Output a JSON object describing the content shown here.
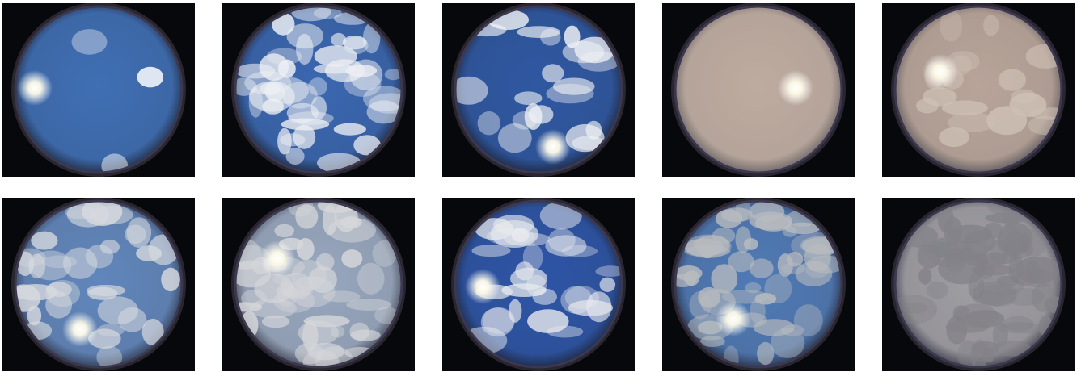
{
  "gallery": {
    "rows": 2,
    "columns": 5,
    "images": [
      {
        "icon": "fisheye-sky-clear-blue-icon",
        "sky": "#3f6fb4",
        "cloud": "#ffffff",
        "cloud_cover": 0.05,
        "sun": true,
        "haze": 0.0
      },
      {
        "icon": "fisheye-sky-broken-clouds-icon",
        "sky": "#3a67b0",
        "cloud": "#eef0f4",
        "cloud_cover": 0.75,
        "sun": false,
        "haze": 0.0
      },
      {
        "icon": "fisheye-sky-scattered-clouds-icon",
        "sky": "#2f58a2",
        "cloud": "#f3f4f6",
        "cloud_cover": 0.35,
        "sun": true,
        "haze": 0.0
      },
      {
        "icon": "fisheye-sky-hazy-overcast-icon",
        "sky": "#b7a49a",
        "cloud": "#c8b8ae",
        "cloud_cover": 0.0,
        "sun": true,
        "haze": 1.0
      },
      {
        "icon": "fisheye-sky-hazy-partly-cloudy-icon",
        "sky": "#b09c92",
        "cloud": "#cfc2b8",
        "cloud_cover": 0.3,
        "sun": true,
        "haze": 0.8
      },
      {
        "icon": "fisheye-sky-altocumulus-icon",
        "sky": "#5a83bd",
        "cloud": "#d9dde3",
        "cloud_cover": 0.55,
        "sun": true,
        "haze": 0.2
      },
      {
        "icon": "fisheye-sky-thin-cirrostratus-icon",
        "sky": "#8fa5c2",
        "cloud": "#d7dce2",
        "cloud_cover": 0.8,
        "sun": true,
        "haze": 0.4
      },
      {
        "icon": "fisheye-sky-cumulus-trees-icon",
        "sky": "#2d55a6",
        "cloud": "#e8eaee",
        "cloud_cover": 0.5,
        "sun": true,
        "haze": 0.0
      },
      {
        "icon": "fisheye-sky-mostly-cloudy-icon",
        "sky": "#4d78b6",
        "cloud": "#b9bcc0",
        "cloud_cover": 0.85,
        "sun": true,
        "haze": 0.1
      },
      {
        "icon": "fisheye-sky-overcast-icon",
        "sky": "#9b9ca3",
        "cloud": "#7b7c84",
        "cloud_cover": 1.0,
        "sun": false,
        "haze": 0.3
      }
    ]
  }
}
